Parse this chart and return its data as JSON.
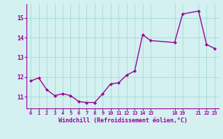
{
  "x": [
    0,
    1,
    2,
    3,
    4,
    5,
    6,
    7,
    8,
    9,
    10,
    11,
    12,
    13,
    14,
    15,
    18,
    19,
    21,
    22,
    23
  ],
  "y": [
    11.8,
    11.95,
    11.35,
    11.05,
    11.15,
    11.05,
    10.75,
    10.7,
    10.7,
    11.15,
    11.65,
    11.7,
    12.1,
    12.3,
    14.15,
    13.85,
    13.75,
    15.2,
    15.35,
    13.65,
    13.45
  ],
  "line_color": "#990099",
  "marker_color": "#990099",
  "bg_color": "#d4f0f0",
  "grid_color": "#aadddd",
  "axis_label_color": "#990099",
  "tick_color": "#990099",
  "xlabel": "Windchill (Refroidissement éolien,°C)",
  "xticks": [
    0,
    1,
    2,
    3,
    4,
    5,
    6,
    7,
    8,
    9,
    10,
    11,
    12,
    13,
    14,
    15,
    18,
    19,
    21,
    22,
    23
  ],
  "yticks": [
    11,
    12,
    13,
    14,
    15
  ],
  "ylim": [
    10.4,
    15.7
  ],
  "xlim": [
    -0.5,
    23.5
  ]
}
